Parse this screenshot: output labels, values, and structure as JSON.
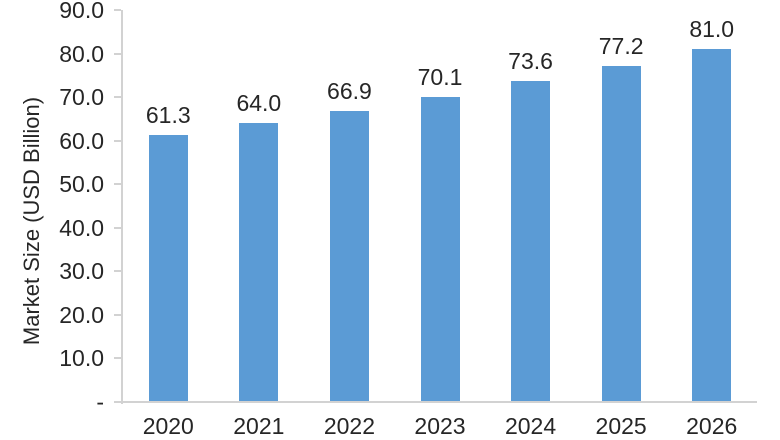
{
  "chart_data": {
    "type": "bar",
    "title": "",
    "categories": [
      "2020",
      "2021",
      "2022",
      "2023",
      "2024",
      "2025",
      "2026"
    ],
    "values": [
      61.3,
      64,
      66.9,
      70.1,
      73.6,
      77.2,
      81
    ],
    "value_labels": [
      "61.3",
      "64.0",
      "66.9",
      "70.1",
      "73.6",
      "77.2",
      "81.0"
    ],
    "ylabel": "Market Size (USD Billion)",
    "xlabel": "",
    "ylim": [
      0,
      90
    ],
    "yticks": {
      "values": [
        90,
        80,
        70,
        60,
        50,
        40,
        30,
        20,
        10,
        0
      ],
      "labels": [
        "90.0",
        "80.0",
        "70.0",
        "60.0",
        "50.0",
        "40.0",
        "30.0",
        "20.0",
        "10.0",
        "-"
      ]
    },
    "legend": "none",
    "grid": false,
    "colors": {
      "bar": "#5B9BD5",
      "axis_line": "#D2D2D2",
      "text": "#262626"
    }
  }
}
